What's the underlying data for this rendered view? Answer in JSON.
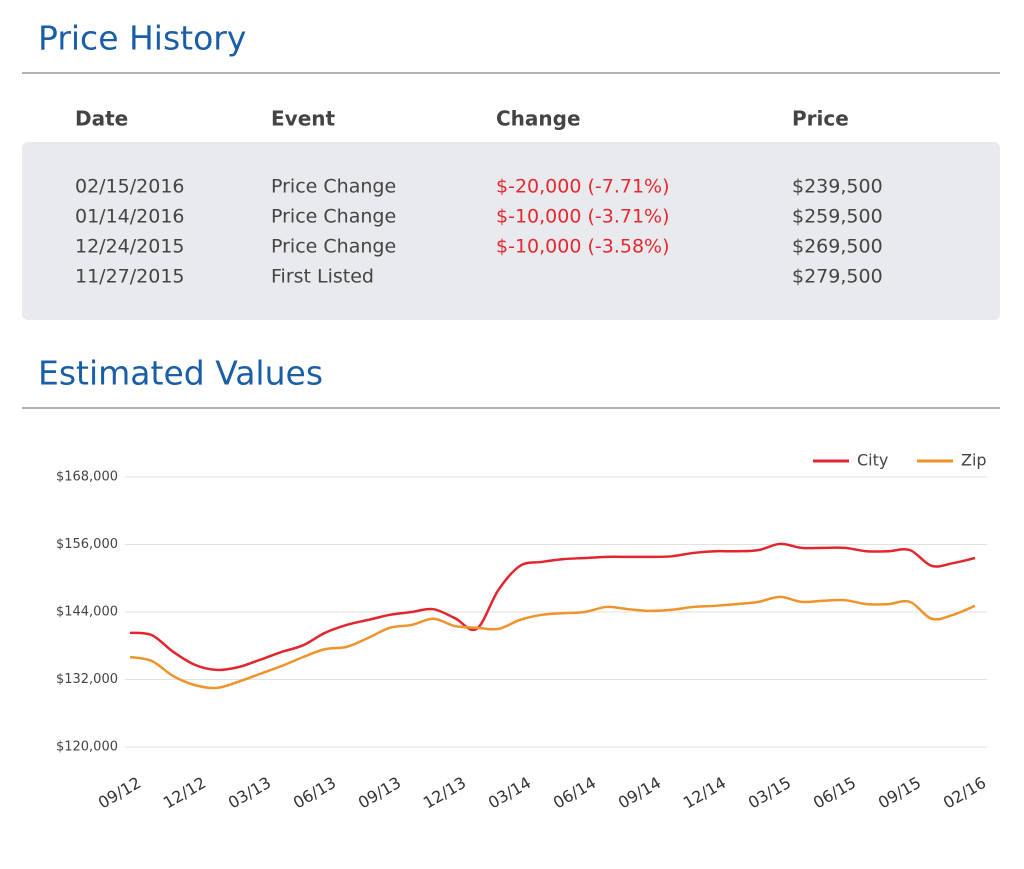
{
  "price_history": {
    "title": "Price History",
    "columns": [
      "Date",
      "Event",
      "Change",
      "Price"
    ],
    "rows": [
      [
        "02/15/2016",
        "Price Change",
        "$-20,000 (-7.71%)",
        "$239,500"
      ],
      [
        "01/14/2016",
        "Price Change",
        "$-10,000 (-3.71%)",
        "$259,500"
      ],
      [
        "12/24/2015",
        "Price Change",
        "$-10,000 (-3.58%)",
        "$269,500"
      ],
      [
        "11/27/2015",
        "First Listed",
        null,
        "$279,500"
      ]
    ]
  },
  "chart_data": {
    "type": "line",
    "title": "Estimated Values",
    "categories": [
      "09/12",
      null,
      null,
      "12/12",
      null,
      null,
      "03/13",
      null,
      null,
      "06/13",
      null,
      null,
      "09/13",
      null,
      null,
      "12/13",
      null,
      null,
      "03/14",
      null,
      null,
      "06/14",
      null,
      null,
      "09/14",
      null,
      null,
      "12/14",
      null,
      null,
      "03/15",
      null,
      null,
      "06/15",
      null,
      null,
      "09/15",
      null,
      null,
      "02/16"
    ],
    "series": [
      {
        "name": "City",
        "color": "#e3262e",
        "values": [
          140300,
          139900,
          136900,
          134600,
          133700,
          134200,
          135500,
          136900,
          138100,
          140300,
          141700,
          142600,
          143500,
          144000,
          144500,
          142900,
          141000,
          147900,
          152200,
          152900,
          153400,
          153600,
          153800,
          153800,
          153800,
          153900,
          154500,
          154800,
          154800,
          155000,
          156100,
          155400,
          155400,
          155400,
          154800,
          154800,
          155000,
          152200,
          152700,
          153600
        ]
      },
      {
        "name": "Zip",
        "color": "#f0932b",
        "values": [
          136000,
          135300,
          132600,
          131000,
          130500,
          131600,
          133000,
          134400,
          136000,
          137400,
          137800,
          139400,
          141200,
          141700,
          142800,
          141500,
          141200,
          141000,
          142600,
          143500,
          143800,
          144000,
          144900,
          144500,
          144200,
          144400,
          144900,
          145100,
          145400,
          145800,
          146700,
          145800,
          146000,
          146100,
          145400,
          145400,
          145800,
          142800,
          143500,
          145100
        ]
      }
    ],
    "ylim": [
      120000,
      168000
    ],
    "yticks": [
      {
        "value": 120000,
        "label": "$120,000"
      },
      {
        "value": 132000,
        "label": "$132,000"
      },
      {
        "value": 144000,
        "label": "$144,000"
      },
      {
        "value": 156000,
        "label": "$156,000"
      },
      {
        "value": 168000,
        "label": "$168,000"
      }
    ],
    "grid": true,
    "legend": "top-right"
  }
}
